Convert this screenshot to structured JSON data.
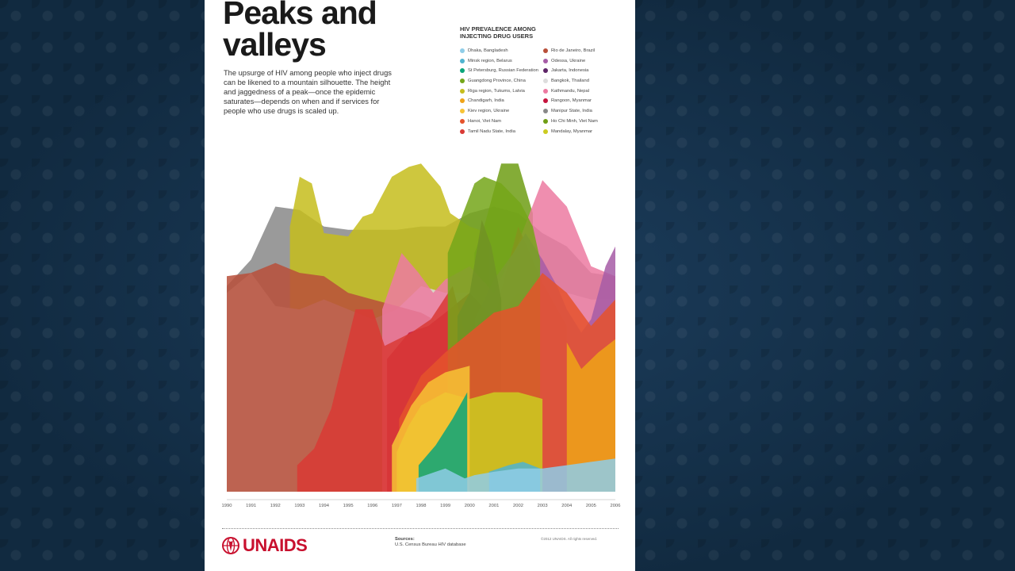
{
  "poster": {
    "title": "Peaks and\nvalleys",
    "intro": "The upsurge of HIV among people who inject drugs can be likened to a mountain silhouette. The height and jaggedness of a peak—once the epidemic saturates—depends on when and if services for people who use drugs is scaled up.",
    "legend_title": "HIV PREVALENCE AMONG\nINJECTING DRUG USERS",
    "sources_label": "Sources:",
    "sources_text": "U.S. Census Bureau HIV database",
    "copyright": "©2012 UNAIDS. All rights reserved.",
    "logo_text": "UNAIDS"
  },
  "chart_data": {
    "type": "area",
    "x_ticks": [
      "1990",
      "1991",
      "1992",
      "1993",
      "1994",
      "1995",
      "1996",
      "1997",
      "1998",
      "1999",
      "2000",
      "2001",
      "2002",
      "2003",
      "2004",
      "2005",
      "2006"
    ],
    "xlim": [
      1990,
      2006
    ],
    "ylim": [
      0,
      100
    ],
    "grid": false,
    "legend_position": "top-right",
    "series": [
      {
        "name": "Dhaka, Bangladesh",
        "color": "#8fcde8",
        "x": [
          1997.8,
          1998.6,
          1999.0,
          1999.8,
          2000.2,
          2001.0,
          2002.0,
          2003.0,
          2004.0,
          2005.0,
          2006.0
        ],
        "y": [
          4,
          6,
          7,
          4,
          5,
          6,
          7,
          7,
          8,
          9,
          10
        ]
      },
      {
        "name": "Minsk region, Belarus",
        "color": "#4fb3cf",
        "x": [
          2000.8,
          2001.6,
          2002.2,
          2002.9
        ],
        "y": [
          6,
          8,
          9,
          7
        ]
      },
      {
        "name": "St Petersburg, Russian Federation",
        "color": "#0aa57a",
        "x": [
          1997.9,
          1998.6,
          1999.3,
          1999.9
        ],
        "y": [
          8,
          14,
          22,
          30
        ]
      },
      {
        "name": "Guangdong Province, China",
        "color": "#74a619",
        "x": [
          1999.1,
          2000.2,
          2000.6,
          2001.3,
          2002.1,
          2002.6,
          2002.9
        ],
        "y": [
          72,
          93,
          95,
          93,
          87,
          80,
          70
        ]
      },
      {
        "name": "Riga region, Tukums, Latvia",
        "color": "#c6bd1c",
        "x": [
          1992.6,
          1993.0,
          1993.5,
          1994.0,
          1995.0,
          1995.6,
          1996.0,
          1996.8,
          1997.5,
          1998.0,
          1998.8,
          1999.2,
          2000.0,
          2000.8
        ],
        "y": [
          80,
          95,
          93,
          78,
          77,
          83,
          84,
          95,
          98,
          99,
          92,
          84,
          80,
          78
        ]
      },
      {
        "name": "Chandigarh, India",
        "color": "#efa318",
        "x": [
          2004.0,
          2004.6,
          2005.3,
          2006.0
        ],
        "y": [
          45,
          37,
          42,
          46
        ]
      },
      {
        "name": "Kiev region, Ukraine",
        "color": "#f7c335",
        "x": [
          1996.8,
          1997.6,
          1998.3,
          1999.0,
          2000.0
        ],
        "y": [
          14,
          26,
          33,
          36,
          38
        ]
      },
      {
        "name": "Hanoi, Viet Nam",
        "color": "#e5522b",
        "x": [
          1997.1,
          1998.0,
          1999.0,
          2000.0,
          2001.0,
          2002.0,
          2003.0,
          2004.0,
          2005.0,
          2006.0
        ],
        "y": [
          22,
          35,
          42,
          48,
          54,
          56,
          66,
          60,
          50,
          58
        ]
      },
      {
        "name": "Tamil Nadu State, India",
        "color": "#d93a35",
        "x": [
          1992.9,
          1993.6,
          1994.3,
          1995.3,
          1996.0,
          1996.5,
          1997.6,
          1998.4,
          1999.3,
          2000.0,
          2001.0,
          2002.0,
          2003.0,
          2004.0
        ],
        "y": [
          8,
          13,
          25,
          55,
          55,
          44,
          48,
          52,
          62,
          42,
          52,
          80,
          63,
          50
        ]
      },
      {
        "name": "Rio de Janeiro, Brazil",
        "color": "#b84f39",
        "x": [
          1990.0,
          1991.0,
          1992.0,
          1993.0,
          1994.0,
          1995.0,
          1996.0,
          1997.0,
          1998.0,
          2000.0
        ],
        "y": [
          65,
          66,
          69,
          66,
          65,
          60,
          58,
          56,
          54,
          46
        ]
      },
      {
        "name": "Odessa, Ukraine",
        "color": "#a65ca6",
        "x": [
          2000.2,
          2001.0,
          2001.8,
          2002.3,
          2003.0,
          2003.6,
          2004.0,
          2004.6,
          2005.0,
          2005.6,
          2006.0
        ],
        "y": [
          52,
          64,
          72,
          78,
          70,
          62,
          55,
          48,
          52,
          68,
          74
        ]
      },
      {
        "name": "Jakarta, Indonesia",
        "color": "#5e2567",
        "x": [
          1999.5,
          2000.0,
          2000.5,
          2000.9,
          2001.3
        ],
        "y": [
          53,
          60,
          82,
          74,
          58
        ]
      },
      {
        "name": "Bangkok, Thailand",
        "color": "#dddddd",
        "x": [
          1990.0,
          1991.0,
          1992.0,
          1993.0,
          1994.0,
          1995.0,
          1996.0,
          1997.0,
          1998.0,
          1999.0,
          2000.0,
          2001.0,
          2002.0,
          2003.0,
          2004.0,
          2005.0,
          2006.0
        ],
        "y": [
          60,
          66,
          56,
          55,
          58,
          55,
          52,
          55,
          62,
          60,
          60,
          56,
          66,
          60,
          60,
          58,
          58
        ]
      },
      {
        "name": "Kathmandu, Nepal",
        "color": "#ec7aa1",
        "x": [
          1996.4,
          1997.2,
          1997.9,
          1998.5,
          1999.0,
          2000.0,
          2001.0,
          2002.0,
          2003.0,
          2004.0,
          2005.0,
          2006.0
        ],
        "y": [
          55,
          72,
          66,
          60,
          64,
          68,
          60,
          75,
          94,
          86,
          68,
          65
        ]
      },
      {
        "name": "Rangoon, Myanmar",
        "color": "#c5133d",
        "x": [
          1996.6,
          1997.5,
          1998.3,
          1999.0,
          2000.0,
          2001.0,
          2002.0,
          2003.0
        ],
        "y": [
          40,
          48,
          50,
          54,
          60,
          52,
          60,
          54
        ]
      },
      {
        "name": "Manipur State, India",
        "color": "#888888",
        "x": [
          1990.0,
          1991.0,
          1992.0,
          1993.0,
          1994.0,
          1995.0,
          1996.0,
          1997.0,
          1998.0,
          1999.0,
          2000.0,
          2001.0,
          2002.0,
          2003.0,
          2004.0,
          2005.0,
          2006.0
        ],
        "y": [
          62,
          70,
          86,
          85,
          80,
          79,
          79,
          79,
          80,
          80,
          84,
          86,
          84,
          78,
          74,
          66,
          65
        ]
      },
      {
        "name": "Ho Chi Minh, Viet Nam",
        "color": "#6f9d14",
        "x": [
          2000.2,
          2000.6,
          2001.3,
          2002.0,
          2002.6
        ],
        "y": [
          72,
          80,
          99,
          99,
          84
        ]
      },
      {
        "name": "Mandalay, Myanmar",
        "color": "#cbcb20",
        "x": [
          1997.0,
          1997.5,
          1998.0,
          1999.0,
          2000.0,
          2001.0,
          2002.0,
          2003.0
        ],
        "y": [
          12,
          20,
          26,
          30,
          28,
          30,
          30,
          28
        ]
      }
    ]
  }
}
